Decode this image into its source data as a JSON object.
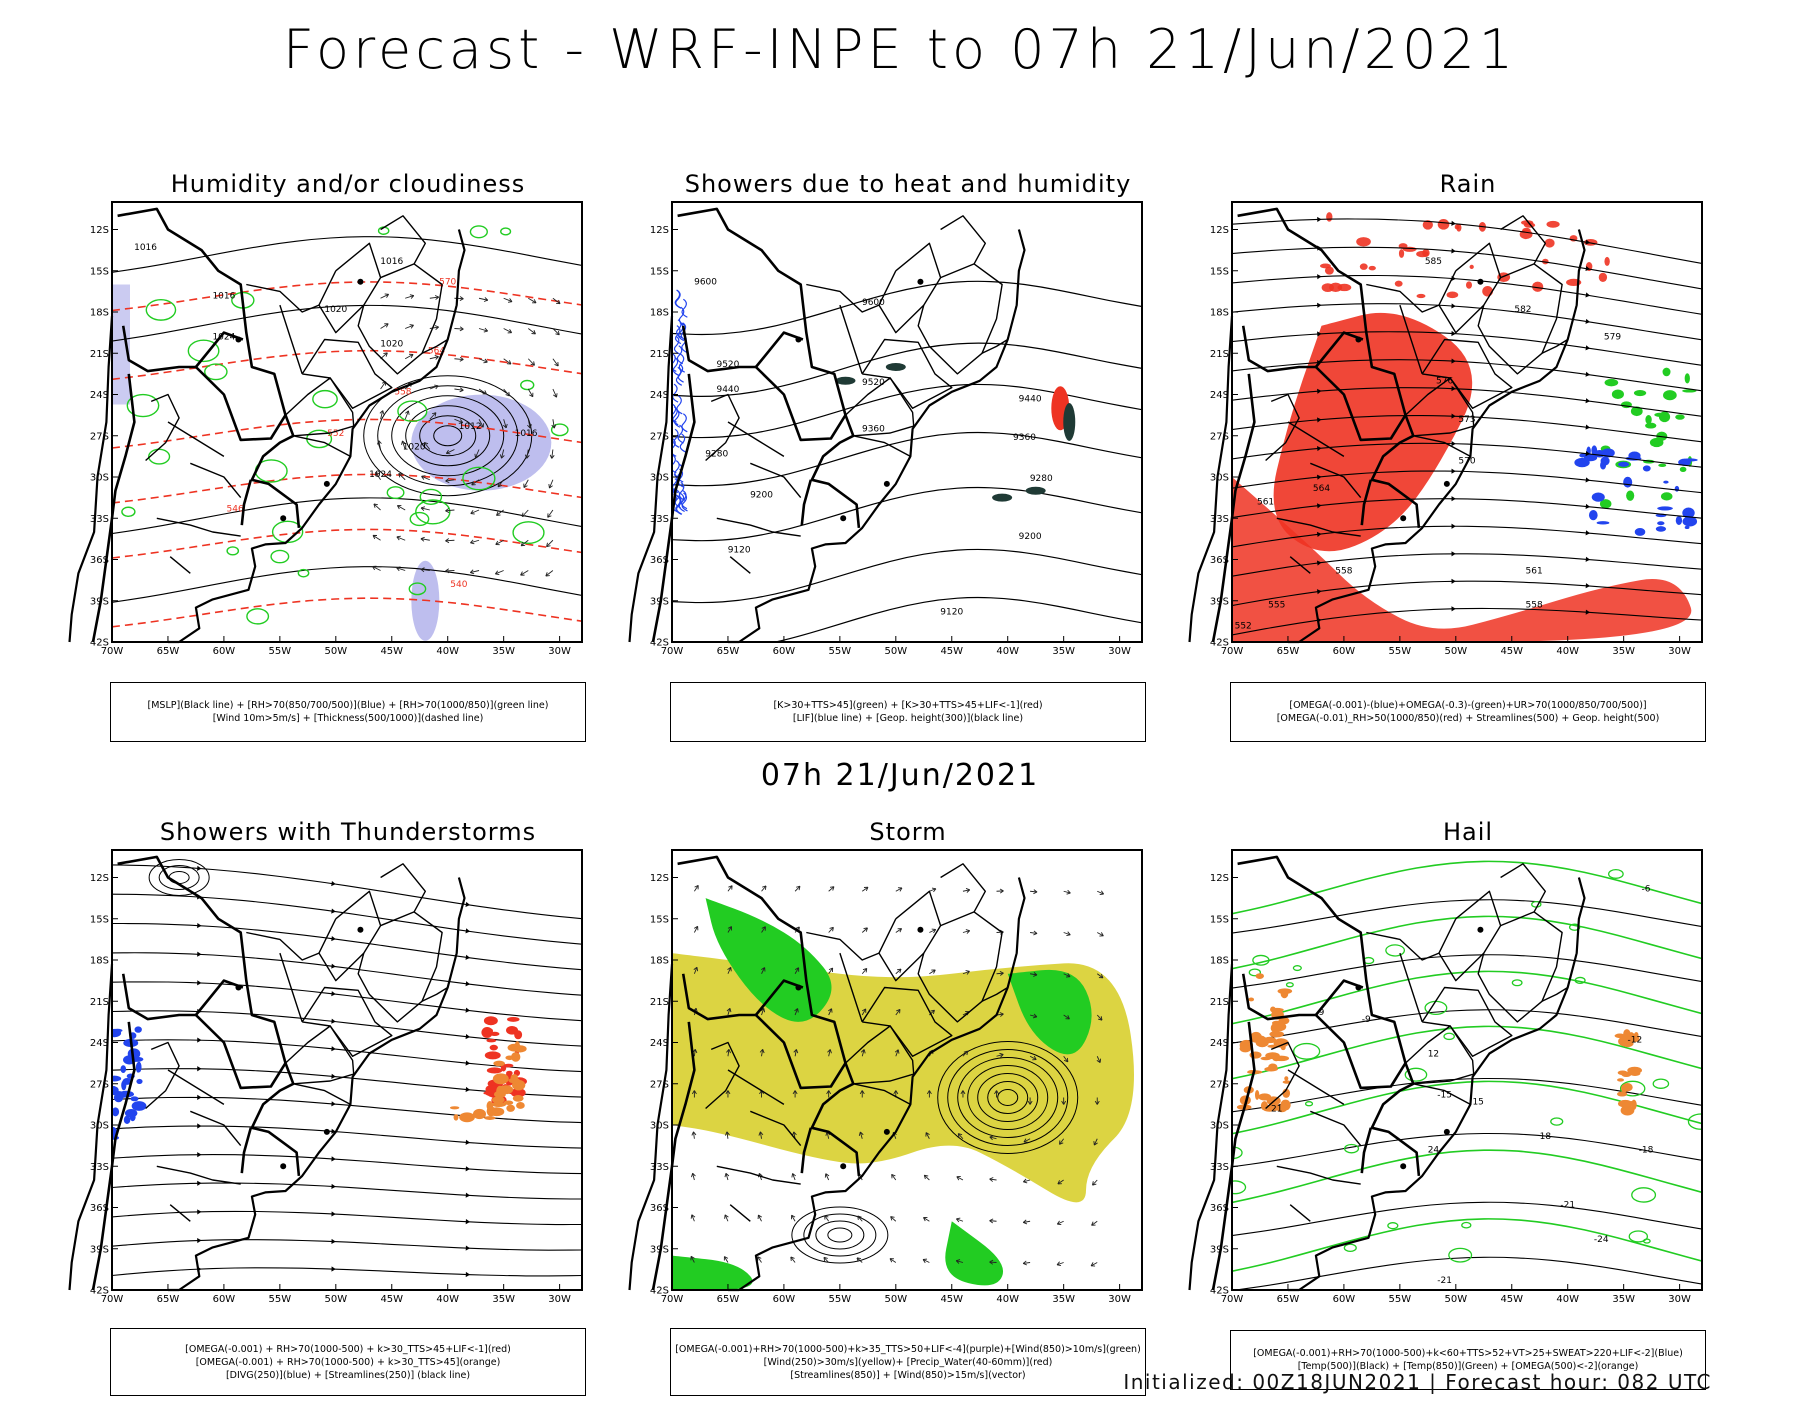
{
  "header": {
    "title": "Forecast - WRF-INPE to 07h 21/Jun/2021",
    "mid_time": "07h 21/Jun/2021"
  },
  "axes": {
    "lat_ticks": [
      "12S",
      "15S",
      "18S",
      "21S",
      "24S",
      "27S",
      "30S",
      "33S",
      "36S",
      "39S",
      "42S"
    ],
    "lon_ticks": [
      "70W",
      "65W",
      "60W",
      "55W",
      "50W",
      "45W",
      "40W",
      "35W",
      "30W"
    ]
  },
  "panels": [
    {
      "title": "Humidity and/or cloudiness",
      "legend": [
        "[MSLP](Black line) + [RH>70(850/700/500)](Blue) + [RH>70(1000/850)](green line)",
        "[Wind 10m>5m/s] + [Thickness(500/1000)](dashed line)"
      ]
    },
    {
      "title": "Showers due to heat and humidity",
      "legend": [
        "[K>30+TTS>45](green) + [K>30+TTS>45+LIF<-1](red)",
        "[LIF](blue line) + [Geop. height(300)](black line)"
      ]
    },
    {
      "title": "Rain",
      "legend": [
        "[OMEGA(-0.001)-(blue)+OMEGA(-0.3)-(green)+UR>70(1000/850/700/500)]",
        "[OMEGA(-0.01)_RH>50(1000/850)(red) + Streamlines(500) + Geop. height(500)"
      ]
    },
    {
      "title": "Showers with Thunderstorms",
      "legend": [
        "[OMEGA(-0.001) + RH>70(1000-500) + k>30_TTS>45+LIF<-1](red)",
        "[OMEGA(-0.001) + RH>70(1000-500) + k>30_TTS>45](orange)",
        "[DIVG(250)](blue) + [Streamlines(250)] (black line)"
      ]
    },
    {
      "title": "Storm",
      "legend": [
        "[OMEGA(-0.001)+RH>70(1000-500)+k>35_TTS>50+LIF<-4](purple)+[Wind(850)>10m/s](green)",
        "[Wind(250)>30m/s](yellow)+ [Precip_Water(40-60mm)](red)",
        "[Streamlines(850)] + [Wind(850)>15m/s](vector)"
      ]
    },
    {
      "title": "Hail",
      "legend": [
        "[OMEGA(-0.001)+RH>70(1000-500)+k<60+TTS>52+VT>25+SWEAT>220+LIF<-2](Blue)",
        "[Temp(500)](Black) + [Temp(850)](Green) + [OMEGA(500)<-2](orange)"
      ]
    }
  ],
  "contour_labels": {
    "p1": [
      "1016",
      "1016",
      "1016",
      "1020",
      "1020",
      "1024",
      "1024",
      "1020",
      "1012",
      "1016",
      "570",
      "564",
      "558",
      "552",
      "546",
      "540"
    ],
    "p2": [
      "9600",
      "9600",
      "9520",
      "9520",
      "9440",
      "9440",
      "9360",
      "9360",
      "9280",
      "9280",
      "9200",
      "9200",
      "9120",
      "9120"
    ],
    "p3": [
      "585",
      "582",
      "579",
      "576",
      "573",
      "570",
      "564",
      "561",
      "558",
      "555",
      "552",
      "558",
      "561"
    ],
    "p6": [
      "-6",
      "-9",
      "-12",
      "-15",
      "-18",
      "-21",
      "-24",
      "-21",
      "9",
      "12",
      "15",
      "18",
      "21",
      "24"
    ]
  },
  "colors": {
    "black": "#000000",
    "green": "#22cc22",
    "red": "#ee3322",
    "blue": "#2244ee",
    "orange": "#ee8833",
    "yellow": "#d8cf2e",
    "darkgreen": "#1f3a35",
    "lavender": "#a8a8e8"
  },
  "footer": "Initialized: 00Z18JUN2021 | Forecast hour: 082 UTC"
}
